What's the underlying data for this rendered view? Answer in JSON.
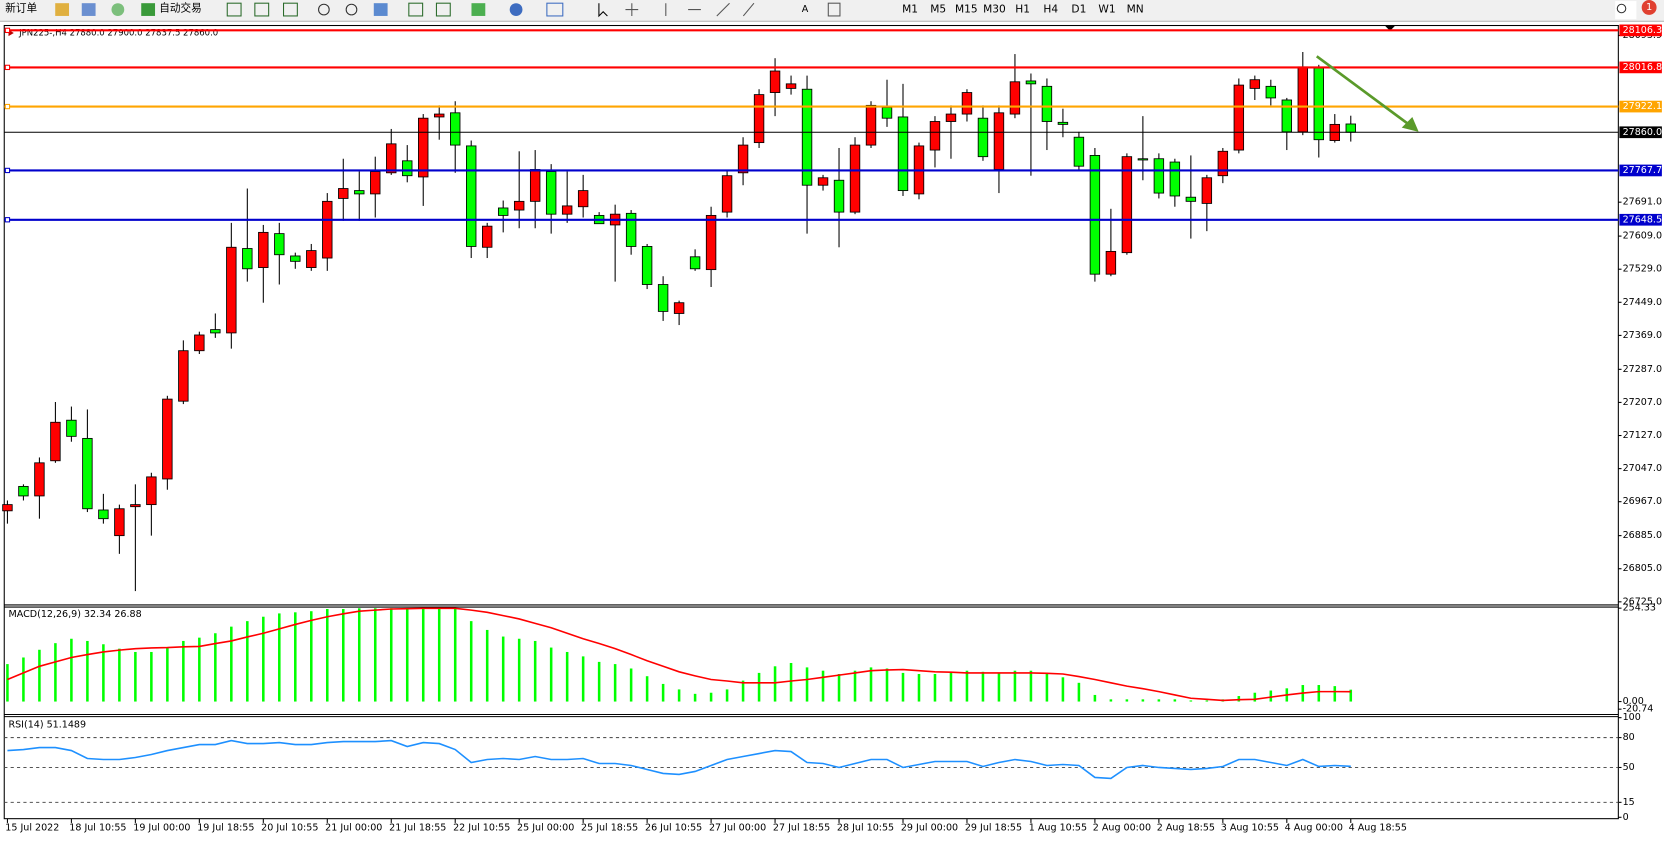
{
  "toolbar": {
    "new_order": "新订单",
    "auto_trading": "自动交易",
    "timeframes": [
      "M1",
      "M5",
      "M15",
      "M30",
      "H1",
      "H4",
      "D1",
      "W1",
      "MN"
    ],
    "notifications": "1"
  },
  "chart_data": [
    {
      "type": "candlestick",
      "title": "JPN225-,H4  27880.0 27900.0 27837.5 27860.0",
      "categories": [
        "15 Jul 2022",
        null,
        null,
        null,
        "18 Jul 10:55",
        null,
        null,
        null,
        "19 Jul 00:00",
        null,
        null,
        null,
        "19 Jul 18:55",
        null,
        null,
        null,
        "20 Jul 10:55",
        null,
        null,
        null,
        "21 Jul 00:00",
        null,
        null,
        null,
        "21 Jul 18:55",
        null,
        null,
        null,
        "22 Jul 10:55",
        null,
        null,
        null,
        "25 Jul 00:00",
        null,
        null,
        null,
        "25 Jul 18:55",
        null,
        null,
        null,
        "26 Jul 10:55",
        null,
        null,
        null,
        "27 Jul 00:00",
        null,
        null,
        null,
        "27 Jul 18:55",
        null,
        null,
        null,
        "28 Jul 10:55",
        null,
        null,
        null,
        "29 Jul 00:00",
        null,
        null,
        null,
        "29 Jul 18:55",
        null,
        null,
        null,
        "1 Aug 10:55",
        null,
        null,
        null,
        "2 Aug 00:00",
        null,
        null,
        null,
        "2 Aug 18:55",
        null,
        null,
        null,
        "3 Aug 10:55",
        null,
        null,
        null,
        "4 Aug 00:00",
        null,
        null,
        null,
        "4 Aug 18:55"
      ],
      "open": [
        26945,
        27004,
        26981,
        27066,
        27164,
        27120,
        26947,
        26885,
        26955,
        26960,
        27022,
        27210,
        27332,
        27383,
        27375,
        27579,
        27533,
        27615,
        27561,
        27533,
        27556,
        27700,
        27719,
        27711,
        27762,
        27791,
        27752,
        27897,
        27907,
        27827,
        27582,
        27677,
        27672,
        27693,
        27765,
        27662,
        27680,
        27659,
        27636,
        27664,
        27584,
        27492,
        27422,
        27559,
        27528,
        27667,
        27762,
        27835,
        27956,
        27966,
        27964,
        27732,
        27744,
        27667,
        27829,
        27920,
        27897,
        27711,
        27817,
        27886,
        27904,
        27894,
        27770,
        27904,
        27984,
        27971,
        27884,
        27848,
        27804,
        27517,
        27569,
        27796,
        27796,
        27788,
        27703,
        27688,
        27755,
        27817,
        27966,
        27971,
        27938,
        27861,
        28015,
        27840,
        27880
      ],
      "high": [
        26970,
        27009,
        27074,
        27208,
        27197,
        27190,
        26986,
        26960,
        27009,
        27037,
        27223,
        27357,
        27378,
        27422,
        27641,
        27724,
        27636,
        27641,
        27569,
        27590,
        27713,
        27796,
        27765,
        27801,
        27868,
        27829,
        27904,
        27925,
        27935,
        27840,
        27641,
        27695,
        27814,
        27817,
        27783,
        27765,
        27757,
        27667,
        27685,
        27672,
        27590,
        27512,
        27453,
        27577,
        27680,
        27770,
        27848,
        27964,
        28039,
        27997,
        27997,
        27757,
        27822,
        27848,
        27935,
        27987,
        27977,
        27835,
        27899,
        27925,
        27964,
        27925,
        27925,
        28049,
        28002,
        27990,
        27917,
        27861,
        27822,
        27675,
        27809,
        27899,
        27809,
        27796,
        27804,
        27757,
        27822,
        27990,
        27997,
        27987,
        27943,
        28054,
        28023,
        27904,
        27900
      ],
      "low": [
        26914,
        26970,
        26926,
        27061,
        27112,
        26942,
        26914,
        26841,
        26751,
        26885,
        26996,
        27203,
        27324,
        27363,
        27337,
        27499,
        27448,
        27492,
        27530,
        27525,
        27525,
        27646,
        27646,
        27654,
        27757,
        27739,
        27682,
        27842,
        27762,
        27556,
        27556,
        27618,
        27628,
        27628,
        27615,
        27641,
        27654,
        27639,
        27499,
        27564,
        27481,
        27404,
        27394,
        27525,
        27486,
        27654,
        27732,
        27822,
        27899,
        27951,
        27615,
        27719,
        27582,
        27662,
        27822,
        27873,
        27706,
        27698,
        27775,
        27796,
        27886,
        27791,
        27713,
        27894,
        27755,
        27817,
        27848,
        27770,
        27499,
        27512,
        27564,
        27744,
        27700,
        27680,
        27603,
        27621,
        27737,
        27809,
        27938,
        27925,
        27817,
        27853,
        27799,
        27835,
        27837.5
      ],
      "close": [
        26960,
        26981,
        27061,
        27159,
        27125,
        26950,
        26926,
        26950,
        26960,
        27027,
        27215,
        27332,
        27370,
        27375,
        27582,
        27530,
        27618,
        27564,
        27548,
        27574,
        27693,
        27724,
        27711,
        27765,
        27832,
        27755,
        27894,
        27904,
        27829,
        27584,
        27633,
        27659,
        27693,
        27770,
        27662,
        27682,
        27719,
        27639,
        27662,
        27584,
        27492,
        27427,
        27448,
        27530,
        27659,
        27755,
        27829,
        27951,
        28008,
        27977,
        27732,
        27750,
        27667,
        27829,
        27925,
        27894,
        27719,
        27827,
        27886,
        27904,
        27956,
        27801,
        27907,
        27982,
        27977,
        27886,
        27879,
        27778,
        27517,
        27572,
        27801,
        27793,
        27713,
        27706,
        27693,
        27750,
        27814,
        27974,
        27987,
        27943,
        27861,
        28018,
        27842,
        27879,
        27860
      ],
      "up_color": "#ff0000",
      "down_color": "#00ff00",
      "ylim": [
        26720,
        28118
      ],
      "yticks": [
        {
          "value": 26725,
          "label": "26725.0"
        },
        {
          "value": 26805,
          "label": "26805.0"
        },
        {
          "value": 26885,
          "label": "26885.0"
        },
        {
          "value": 26967,
          "label": "26967.0"
        },
        {
          "value": 27047,
          "label": "27047.0"
        },
        {
          "value": 27127,
          "label": "27127.0"
        },
        {
          "value": 27207,
          "label": "27207.0"
        },
        {
          "value": 27287,
          "label": "27287.0"
        },
        {
          "value": 27369,
          "label": "27369.0"
        },
        {
          "value": 27449,
          "label": "27449.0"
        },
        {
          "value": 27529,
          "label": "27529.0"
        },
        {
          "value": 27609,
          "label": "27609.0"
        },
        {
          "value": 27691,
          "label": "27691.0"
        },
        28093.9
      ],
      "price_lines": [
        {
          "value": 28106.3,
          "color": "#ff0000"
        },
        {
          "value": 28016.8,
          "color": "#ff0000"
        },
        {
          "value": 27922.1,
          "color": "#ffa500"
        },
        {
          "value": 27860,
          "label": "27860.0",
          "color": "#000000"
        },
        {
          "value": 27767.7,
          "color": "#0000cc"
        },
        {
          "value": 27648.5,
          "color": "#0000cc"
        }
      ]
    },
    {
      "type": "macd",
      "title": "MACD(12,26,9) 32.34 26.88",
      "histogram": {
        "color": "#00ff00",
        "values": [
          102,
          120,
          141,
          159,
          171,
          165,
          156,
          144,
          135,
          135,
          147,
          165,
          174,
          186,
          204,
          219,
          231,
          240,
          243,
          246,
          252,
          252,
          254,
          254,
          254,
          254,
          254,
          254,
          252,
          219,
          195,
          177,
          171,
          165,
          147,
          135,
          123,
          108,
          102,
          90,
          69,
          48,
          33,
          21,
          24,
          33,
          57,
          78,
          96,
          105,
          93,
          84,
          75,
          84,
          93,
          90,
          78,
          75,
          75,
          78,
          84,
          81,
          78,
          84,
          84,
          75,
          66,
          51,
          18,
          6,
          6,
          6,
          6,
          6,
          3,
          3,
          6,
          15,
          24,
          30,
          36,
          45,
          45,
          42,
          32.34
        ]
      },
      "signal": {
        "color": "#ff0000",
        "values": [
          60,
          78,
          96,
          108,
          120,
          128,
          135,
          140,
          144,
          146,
          147,
          149,
          150,
          158,
          165,
          176,
          186,
          198,
          210,
          221,
          231,
          239,
          246,
          249,
          252,
          253,
          254,
          254,
          254,
          249,
          243,
          234,
          225,
          213,
          201,
          186,
          171,
          158,
          144,
          128,
          111,
          96,
          81,
          70,
          60,
          56,
          51,
          51,
          51,
          56,
          60,
          66,
          72,
          78,
          84,
          86,
          87,
          84,
          81,
          80,
          78,
          78,
          78,
          78,
          78,
          77,
          75,
          68,
          60,
          51,
          42,
          35,
          27,
          18,
          9,
          6,
          3,
          5,
          6,
          12,
          18,
          23,
          27,
          27,
          26.88
        ]
      },
      "ylim": [
        -20.74,
        254.33
      ],
      "yticks": [
        254.33,
        {
          "value": 0,
          "label": "0.00"
        },
        -20.74
      ]
    },
    {
      "type": "rsi",
      "title": "RSI(14) 51.1489",
      "color": "#1e90ff",
      "values": [
        67,
        68,
        70,
        70,
        67,
        59,
        58,
        58,
        60,
        63,
        67,
        70,
        73,
        73,
        77,
        74,
        74,
        75,
        73,
        73,
        75,
        76,
        76,
        76,
        77,
        71,
        75,
        74,
        68,
        55,
        58,
        59,
        58,
        61,
        58,
        58,
        59,
        54,
        54,
        52,
        48,
        44,
        43,
        46,
        52,
        58,
        61,
        64,
        67,
        66,
        55,
        54,
        50,
        54,
        58,
        58,
        50,
        53,
        56,
        56,
        56,
        51,
        55,
        58,
        56,
        52,
        53,
        52,
        40,
        39,
        50,
        52,
        50,
        49,
        48,
        49,
        51,
        58,
        58,
        55,
        52,
        58,
        51,
        52,
        51.1489
      ],
      "ylim": [
        0,
        100
      ],
      "yticks": [
        0,
        15,
        50,
        80,
        100
      ]
    }
  ]
}
